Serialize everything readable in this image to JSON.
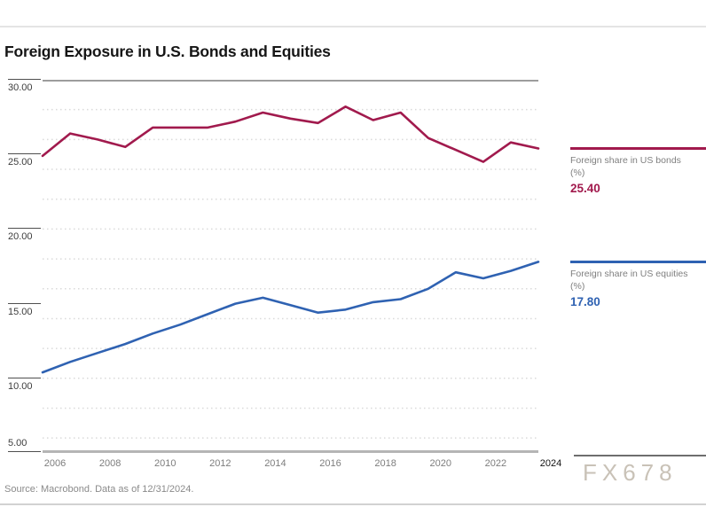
{
  "page": {
    "title": "Foreign Exposure in U.S. Bonds and Equities",
    "source_note": "Source: Macrobond. Data as of 12/31/2024.",
    "watermark": "FX678"
  },
  "colors": {
    "bonds": "#A11A4D",
    "equities": "#2F62B2",
    "grid_dot": "#dadada",
    "plot_border_top": "#9d9d9d",
    "plot_border_bottom": "#b5b5b5"
  },
  "legend": [
    {
      "label": "Foreign share in US bonds (%)",
      "value": "25.40",
      "series": "bonds"
    },
    {
      "label": "Foreign share in US equities (%)",
      "value": "17.80",
      "series": "equities"
    }
  ],
  "chart_data": {
    "type": "line",
    "title": "Foreign Exposure in U.S. Bonds and Equities",
    "x": [
      2006,
      2007,
      2008,
      2009,
      2010,
      2011,
      2012,
      2013,
      2014,
      2015,
      2016,
      2017,
      2018,
      2019,
      2020,
      2021,
      2022,
      2023,
      2024
    ],
    "series": [
      {
        "name": "Foreign share in US bonds (%)",
        "color_key": "bonds",
        "values": [
          24.9,
          26.4,
          26.0,
          25.5,
          26.8,
          26.8,
          26.8,
          27.2,
          27.8,
          27.4,
          27.1,
          28.2,
          27.3,
          27.8,
          26.1,
          25.3,
          24.5,
          25.8,
          25.4
        ],
        "last_value_label": "25.40"
      },
      {
        "name": "Foreign share in US equities (%)",
        "color_key": "equities",
        "values": [
          10.4,
          11.1,
          11.7,
          12.3,
          13.0,
          13.6,
          14.3,
          15.0,
          15.4,
          14.9,
          14.4,
          14.6,
          15.1,
          15.3,
          16.0,
          17.1,
          16.7,
          17.2,
          17.8
        ],
        "last_value_label": "17.80"
      }
    ],
    "xlabel": "",
    "ylabel": "",
    "ylim": [
      5,
      30
    ],
    "yticks": [
      {
        "value": 30,
        "label": "30.00"
      },
      {
        "value": 25,
        "label": "25.00"
      },
      {
        "value": 20,
        "label": "20.00"
      },
      {
        "value": 15,
        "label": "15.00"
      },
      {
        "value": 10,
        "label": "10.00"
      },
      {
        "value": 5,
        "label": "5.00"
      }
    ],
    "xticks": [
      {
        "year": 2006,
        "label": "2006"
      },
      {
        "year": 2008,
        "label": "2008"
      },
      {
        "year": 2010,
        "label": "2010"
      },
      {
        "year": 2012,
        "label": "2012"
      },
      {
        "year": 2014,
        "label": "2014"
      },
      {
        "year": 2016,
        "label": "2016"
      },
      {
        "year": 2018,
        "label": "2018"
      },
      {
        "year": 2020,
        "label": "2020"
      },
      {
        "year": 2022,
        "label": "2022"
      },
      {
        "year": 2024,
        "label": "2024",
        "current": true
      }
    ],
    "gridlines": {
      "style": "dotted",
      "every": 2,
      "from": 6,
      "to": 28
    },
    "legend_position": "right"
  }
}
